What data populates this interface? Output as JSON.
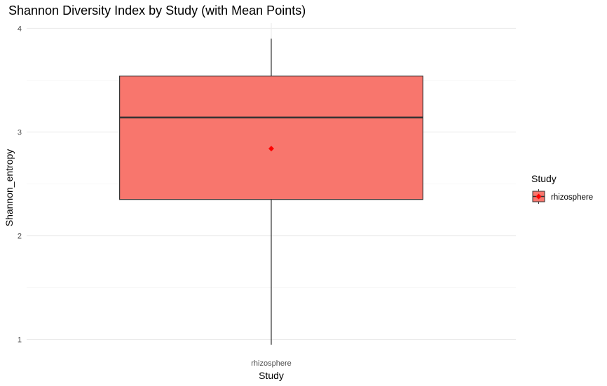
{
  "chart_data": {
    "type": "box",
    "title": "Shannon Diversity Index by Study (with Mean Points)",
    "xlabel": "Study",
    "ylabel": "Shannon_entropy",
    "categories": [
      "rhizosphere"
    ],
    "ylim": [
      0.95,
      4.05
    ],
    "y_ticks": [
      1,
      2,
      3,
      4
    ],
    "y_tick_labels": [
      "1",
      "2",
      "3",
      "4"
    ],
    "grid": true,
    "boxes": [
      {
        "category": "rhizosphere",
        "min": 0.95,
        "q1": 2.35,
        "median": 3.14,
        "q3": 3.54,
        "max": 3.9,
        "mean": 2.84
      }
    ],
    "legend": {
      "title": "Study",
      "position": "right",
      "entries": [
        "rhizosphere"
      ]
    },
    "colors": {
      "box_fill": "#f8766d",
      "box_stroke": "#333333",
      "mean_point": "#ff0000",
      "grid_major": "#ebebeb",
      "grid_minor": "#f4f4f4"
    }
  }
}
